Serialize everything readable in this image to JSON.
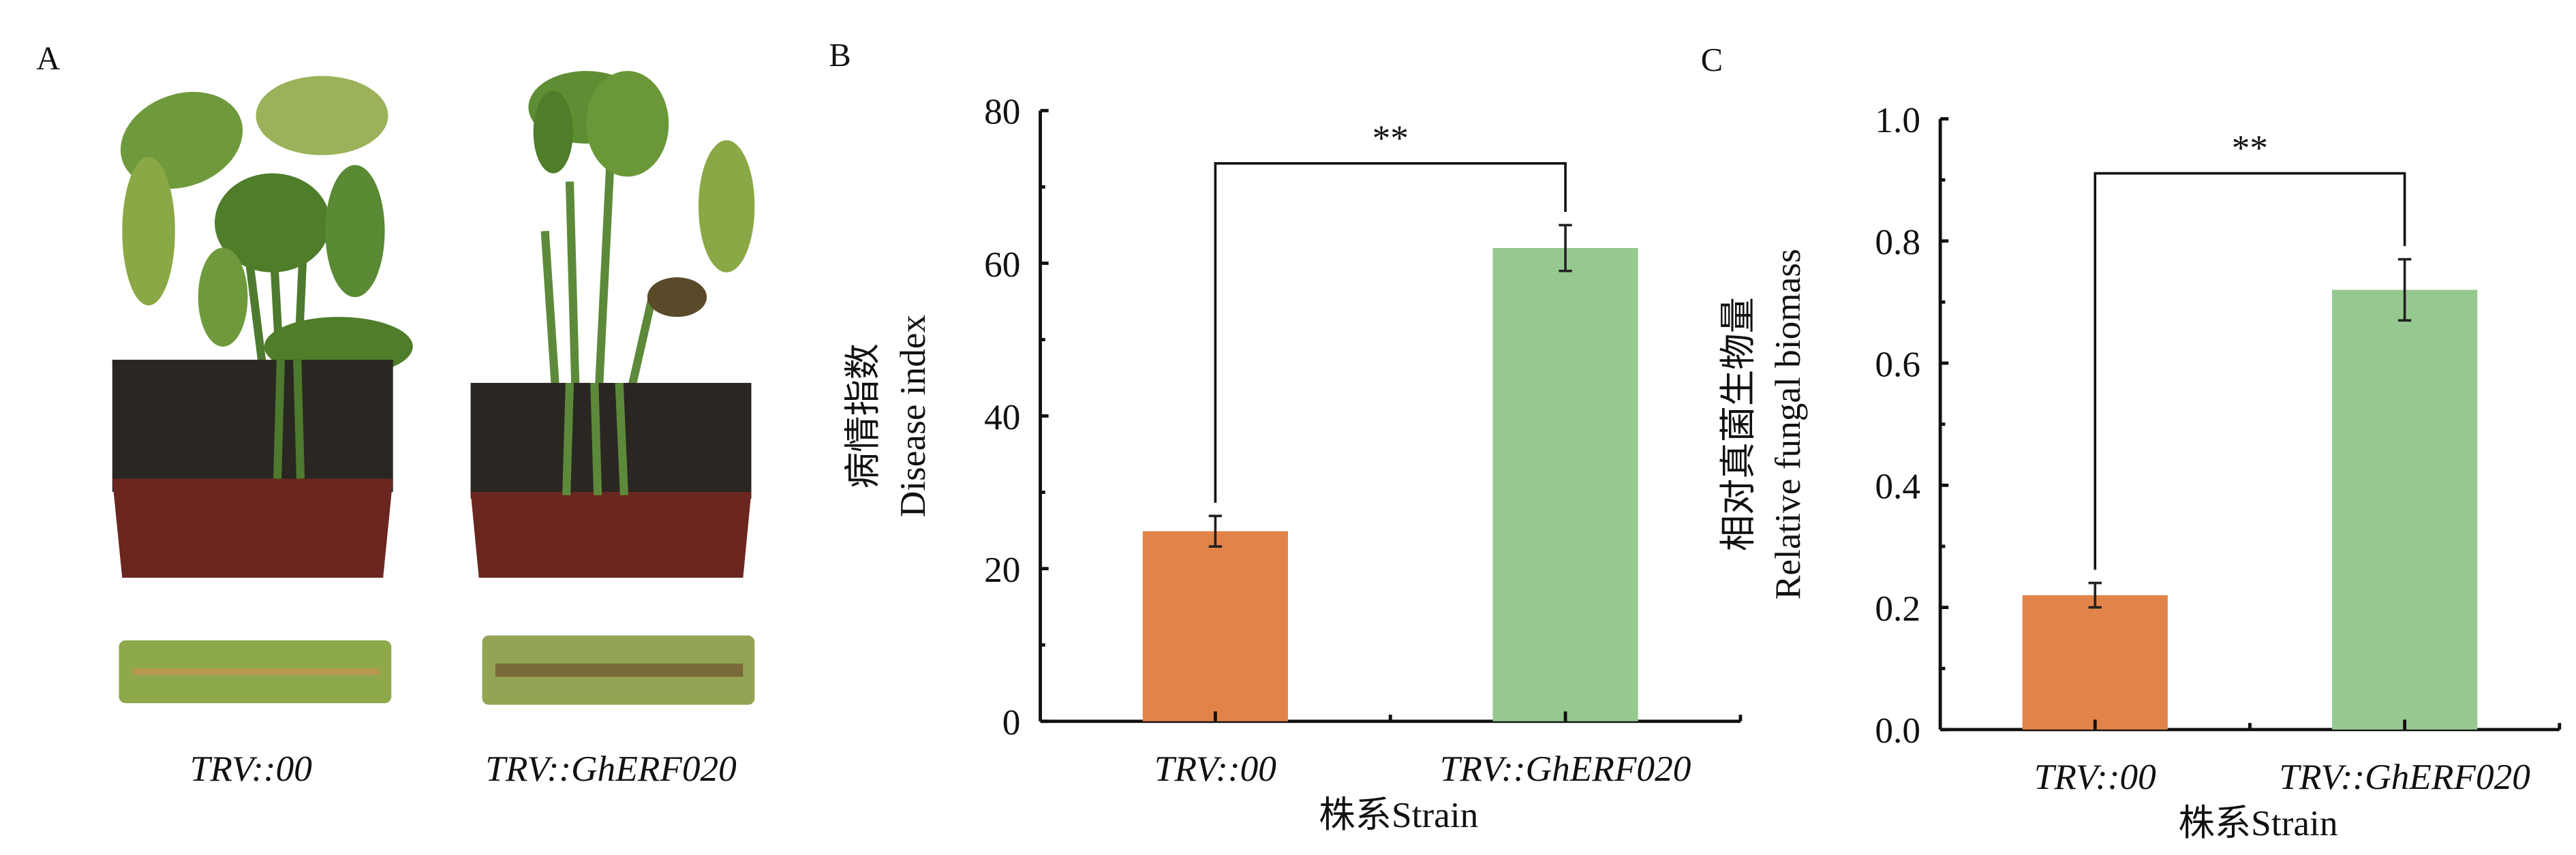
{
  "panel_a": {
    "letter": "A",
    "labels": [
      "TRV::00",
      "TRV::GhERF020"
    ]
  },
  "chart_data": [
    {
      "panel": "B",
      "type": "bar",
      "categories": [
        "TRV::00",
        "TRV::GhERF020"
      ],
      "values": [
        24.9,
        62.0
      ],
      "errors": [
        2.0,
        3.0
      ],
      "colors": [
        "#E2844A",
        "#96C98F"
      ],
      "ylim": [
        0,
        80
      ],
      "yticks": [
        0,
        20,
        40,
        60,
        80
      ],
      "ytick_labels": [
        "0",
        "20",
        "40",
        "60",
        "80"
      ],
      "ylabel_cn": "病情指数",
      "ylabel_en": "Disease index",
      "xlabel": "株系Strain",
      "significance": "**",
      "grid": false
    },
    {
      "panel": "C",
      "type": "bar",
      "categories": [
        "TRV::00",
        "TRV::GhERF020"
      ],
      "values": [
        0.22,
        0.72
      ],
      "errors": [
        0.02,
        0.05
      ],
      "colors": [
        "#E2844A",
        "#96C98F"
      ],
      "ylim": [
        0,
        1.0
      ],
      "yticks": [
        0,
        0.2,
        0.4,
        0.6,
        0.8,
        1.0
      ],
      "ytick_labels": [
        "0.0",
        "0.2",
        "0.4",
        "0.6",
        "0.8",
        "1.0"
      ],
      "ylabel_cn": "相对真菌生物量",
      "ylabel_en": "Relative fungal biomass",
      "xlabel": "株系Strain",
      "significance": "**",
      "grid": false
    }
  ]
}
